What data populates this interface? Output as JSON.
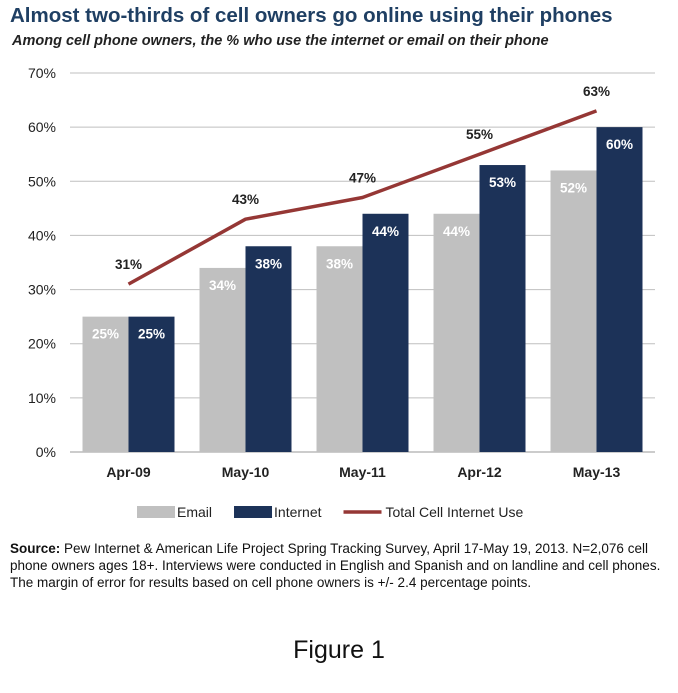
{
  "title": "Almost two-thirds of cell owners go online using their phones",
  "subtitle": "Among cell phone owners, the % who use the internet or email on their phone",
  "source_label": "Source:",
  "source_text": "Pew Internet & American Life Project Spring Tracking Survey, April 17-May 19, 2013. N=2,076 cell phone owners ages 18+.  Interviews were conducted in English and Spanish and on landline and cell phones.  The margin of error for results based on cell phone owners is +/- 2.4 percentage points.",
  "caption": "Figure 1",
  "chart_data": {
    "type": "bar",
    "categories": [
      "Apr-09",
      "May-10",
      "May-11",
      "Apr-12",
      "May-13"
    ],
    "series": [
      {
        "name": "Email",
        "type": "bar",
        "values": [
          25,
          34,
          38,
          44,
          52
        ],
        "labels": [
          "25%",
          "34%",
          "38%",
          "44%",
          "52%"
        ],
        "color": "#c0c0c0"
      },
      {
        "name": "Internet",
        "type": "bar",
        "values": [
          25,
          38,
          44,
          53,
          60
        ],
        "labels": [
          "25%",
          "38%",
          "44%",
          "53%",
          "60%"
        ],
        "color": "#1c3258"
      },
      {
        "name": "Total Cell Internet Use",
        "type": "line",
        "values": [
          31,
          43,
          47,
          55,
          63
        ],
        "labels": [
          "31%",
          "43%",
          "47%",
          "55%",
          "63%"
        ],
        "color": "#953735"
      }
    ],
    "ylim": [
      0,
      70
    ],
    "yticks": [
      "0%",
      "10%",
      "20%",
      "30%",
      "40%",
      "50%",
      "60%",
      "70%"
    ],
    "grid": true,
    "legend": "bottom"
  }
}
